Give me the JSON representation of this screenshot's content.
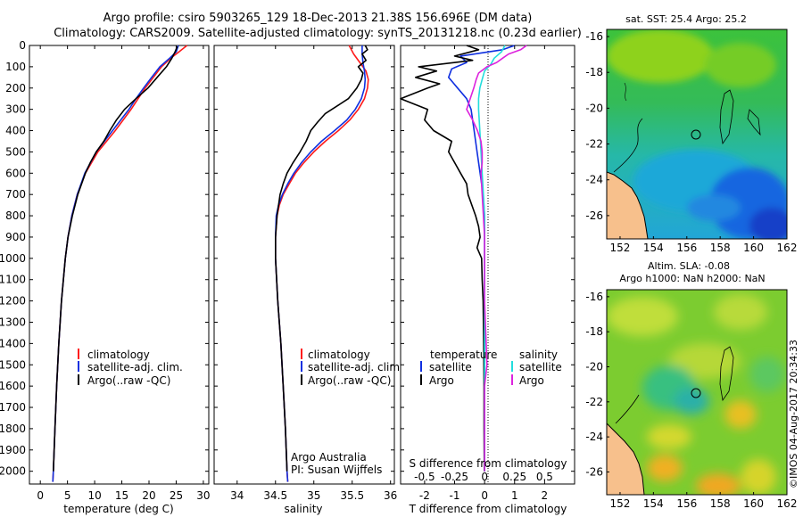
{
  "header": {
    "title_line1": "Argo profile: csiro 5903265_129 18-Dec-2013 21.38S 156.696E (DM data)",
    "title_line2": "Climatology: CARS2009. Satellite-adjusted climatology: synTS_20131218.nc (0.23d earlier)"
  },
  "colors": {
    "climatology": "#ff1a1a",
    "satellite": "#1030e0",
    "argo": "#000000",
    "sal_satellite": "#22dddd",
    "sal_argo": "#dd22dd",
    "land": "#f7c08c"
  },
  "chart_data": [
    {
      "id": "temperature",
      "type": "line",
      "xlabel": "temperature (deg C)",
      "ylabel": "",
      "xlim": [
        -2,
        31
      ],
      "ylim": [
        2060,
        0
      ],
      "x_ticks": [
        "0",
        "5",
        "10",
        "15",
        "20",
        "25",
        "30"
      ],
      "x_tick_values": [
        0,
        5,
        10,
        15,
        20,
        25,
        30
      ],
      "y_tick_values": [
        0,
        100,
        200,
        300,
        400,
        500,
        600,
        700,
        800,
        900,
        1000,
        1100,
        1200,
        1300,
        1400,
        1500,
        1600,
        1700,
        1800,
        1900,
        2000
      ],
      "y_ticks": [
        "0",
        "100",
        "200",
        "300",
        "400",
        "500",
        "600",
        "700",
        "800",
        "900",
        "1000",
        "1100",
        "1200",
        "1300",
        "1400",
        "1500",
        "1600",
        "1700",
        "1800",
        "1900",
        "2000"
      ],
      "legend": [
        "climatology",
        "satellite-adj. clim.",
        "Argo(..raw -QC)"
      ],
      "series": [
        {
          "name": "climatology",
          "depth": [
            0,
            30,
            60,
            100,
            150,
            200,
            250,
            300,
            400,
            500,
            600,
            700,
            800,
            900,
            1000,
            1200,
            1400,
            1600,
            1800,
            2000,
            2050
          ],
          "values": [
            27.0,
            25.5,
            24.0,
            22.3,
            20.8,
            19.3,
            18.0,
            16.7,
            13.8,
            10.6,
            8.3,
            6.8,
            5.8,
            5.1,
            4.6,
            3.9,
            3.4,
            3.0,
            2.7,
            2.4,
            2.3
          ]
        },
        {
          "name": "satellite-adj. clim.",
          "depth": [
            0,
            30,
            60,
            100,
            150,
            200,
            250,
            300,
            400,
            500,
            600,
            700,
            800,
            900,
            1000,
            1200,
            1400,
            1600,
            1800,
            2000,
            2050
          ],
          "values": [
            25.4,
            25.0,
            23.8,
            22.0,
            20.5,
            19.0,
            17.6,
            16.3,
            13.3,
            10.3,
            8.2,
            6.8,
            5.8,
            5.1,
            4.6,
            3.9,
            3.4,
            3.0,
            2.7,
            2.4,
            2.3
          ]
        },
        {
          "name": "Argo(..raw -QC)",
          "depth": [
            5,
            30,
            60,
            100,
            150,
            200,
            250,
            300,
            350,
            400,
            450,
            500,
            550,
            600,
            700,
            800,
            900,
            1000,
            1200,
            1400,
            1600,
            1800,
            2000
          ],
          "values": [
            25.2,
            24.8,
            24.2,
            23.2,
            21.5,
            19.8,
            17.6,
            15.5,
            14.0,
            12.8,
            11.7,
            10.3,
            9.2,
            8.3,
            6.9,
            5.9,
            5.1,
            4.6,
            3.9,
            3.4,
            3.0,
            2.7,
            2.4
          ]
        }
      ]
    },
    {
      "id": "salinity",
      "type": "line",
      "xlabel": "salinity",
      "xlim": [
        33.7,
        36.05
      ],
      "ylim": [
        2060,
        0
      ],
      "x_ticks": [
        "34",
        "34.5",
        "35",
        "35.5",
        "36"
      ],
      "x_tick_values": [
        34,
        34.5,
        35,
        35.5,
        36
      ],
      "legend": [
        "climatology",
        "satellite-adj. clim.",
        "Argo(..raw -QC)"
      ],
      "annotation": [
        "Argo Australia",
        "PI: Susan Wijffels"
      ],
      "series": [
        {
          "name": "climatology",
          "depth": [
            0,
            40,
            80,
            120,
            160,
            200,
            250,
            300,
            350,
            400,
            450,
            500,
            550,
            600,
            650,
            700,
            750,
            800,
            900,
            1000,
            1200,
            1400,
            1600,
            1800,
            2000,
            2050
          ],
          "values": [
            35.46,
            35.52,
            35.6,
            35.68,
            35.71,
            35.7,
            35.66,
            35.58,
            35.47,
            35.32,
            35.15,
            35.0,
            34.87,
            34.76,
            34.68,
            34.6,
            34.55,
            34.52,
            34.5,
            34.5,
            34.53,
            34.57,
            34.6,
            34.63,
            34.65,
            34.66
          ]
        },
        {
          "name": "satellite-adj. clim.",
          "depth": [
            0,
            40,
            80,
            120,
            160,
            200,
            250,
            300,
            350,
            400,
            450,
            500,
            550,
            600,
            650,
            700,
            750,
            800,
            900,
            1000,
            1200,
            1400,
            1600,
            1800,
            2000,
            2050
          ],
          "values": [
            35.63,
            35.63,
            35.64,
            35.66,
            35.67,
            35.66,
            35.62,
            35.54,
            35.43,
            35.27,
            35.1,
            34.96,
            34.84,
            34.74,
            34.66,
            34.59,
            34.54,
            34.51,
            34.5,
            34.5,
            34.53,
            34.57,
            34.6,
            34.63,
            34.65,
            34.66
          ]
        },
        {
          "name": "Argo(..raw -QC)",
          "depth": [
            0,
            20,
            40,
            70,
            100,
            130,
            160,
            200,
            250,
            280,
            320,
            360,
            400,
            450,
            500,
            550,
            600,
            650,
            700,
            800,
            900,
            1000,
            1200,
            1400,
            1600,
            1800,
            2000
          ],
          "values": [
            35.67,
            35.7,
            35.63,
            35.68,
            35.58,
            35.64,
            35.62,
            35.56,
            35.45,
            35.32,
            35.15,
            35.05,
            34.96,
            34.9,
            34.82,
            34.73,
            34.65,
            34.6,
            34.56,
            34.52,
            34.5,
            34.5,
            34.53,
            34.57,
            34.6,
            34.63,
            34.65
          ]
        }
      ]
    },
    {
      "id": "differences",
      "type": "line",
      "xlabel": "T difference from climatology",
      "xlabel_top": "S difference from climatology",
      "xlim": [
        -2.8,
        3.0
      ],
      "ylim": [
        2060,
        0
      ],
      "x_ticks": [
        "-2",
        "-1",
        "0",
        "1",
        "2"
      ],
      "x_tick_values": [
        -2,
        -1,
        0,
        1,
        2
      ],
      "s_ticks": [
        "-0.5",
        "-0.25",
        "0",
        "0.25",
        "0.5"
      ],
      "s_tick_values": [
        -0.5,
        -0.25,
        0,
        0.25,
        0.5
      ],
      "s_scale_factor": 4,
      "legend_left_title": "temperature",
      "legend_right_title": "salinity",
      "legend_left": [
        "satellite",
        "Argo"
      ],
      "legend_right": [
        "satellite",
        "Argo"
      ],
      "series": [
        {
          "name": "temperature satellite",
          "depth": [
            0,
            20,
            50,
            80,
            110,
            150,
            200,
            250,
            300,
            400,
            500,
            600,
            700,
            800,
            1000,
            1200,
            1400,
            1600,
            1800,
            2000
          ],
          "values": [
            1.0,
            0.6,
            -0.8,
            -0.6,
            -1.1,
            -1.2,
            -0.9,
            -0.6,
            -0.45,
            -0.35,
            -0.25,
            -0.15,
            -0.05,
            0.0,
            0.0,
            0.0,
            0.0,
            0.0,
            0.0,
            0.0
          ]
        },
        {
          "name": "temperature Argo",
          "depth": [
            0,
            20,
            50,
            70,
            100,
            120,
            150,
            180,
            200,
            250,
            300,
            350,
            400,
            450,
            500,
            600,
            650,
            700,
            800,
            850,
            900,
            950,
            1000,
            1100,
            1200,
            1400,
            1600,
            1800,
            2000
          ],
          "values": [
            -0.6,
            -0.2,
            -1.0,
            -0.4,
            -2.2,
            -1.6,
            -2.3,
            -1.5,
            -1.9,
            -2.8,
            -1.9,
            -2.0,
            -1.7,
            -1.1,
            -1.2,
            -0.8,
            -0.6,
            -0.55,
            -0.3,
            -0.2,
            -0.15,
            -0.25,
            -0.1,
            -0.08,
            -0.05,
            -0.03,
            -0.02,
            -0.02,
            -0.01
          ]
        },
        {
          "name": "salinity satellite",
          "depth": [
            0,
            30,
            60,
            90,
            120,
            160,
            200,
            250,
            300,
            400,
            500,
            600,
            700,
            800,
            1000,
            1200,
            1400,
            1600,
            1800,
            2000
          ],
          "values": [
            0.17,
            0.14,
            0.08,
            0.05,
            0.0,
            -0.02,
            -0.04,
            -0.05,
            -0.05,
            -0.04,
            -0.03,
            -0.02,
            -0.01,
            0.0,
            0.0,
            0.0,
            0.0,
            0.0,
            0.0,
            0.0
          ]
        },
        {
          "name": "salinity Argo",
          "depth": [
            0,
            20,
            40,
            60,
            80,
            100,
            130,
            160,
            200,
            250,
            300,
            350,
            400,
            450,
            500,
            550,
            600,
            700,
            800,
            900,
            1000,
            1200,
            1500,
            1600,
            1800,
            2000
          ],
          "values": [
            0.35,
            0.3,
            0.2,
            0.15,
            0.1,
            0.02,
            -0.05,
            -0.07,
            -0.09,
            -0.12,
            -0.15,
            -0.1,
            -0.06,
            -0.03,
            -0.02,
            -0.02,
            -0.03,
            -0.02,
            -0.01,
            0.0,
            0.0,
            0.0,
            0.02,
            0.0,
            0.0,
            0.0
          ]
        }
      ]
    },
    {
      "id": "sst_map",
      "type": "heatmap",
      "title": "sat. SST: 25.4  Argo: 25.2",
      "xlim": [
        151.2,
        162.0
      ],
      "ylim": [
        -27.3,
        -15.6
      ],
      "x_ticks": [
        "152",
        "154",
        "156",
        "158",
        "160",
        "162"
      ],
      "x_tick_values": [
        152,
        154,
        156,
        158,
        160,
        162
      ],
      "y_ticks": [
        "-16",
        "-18",
        "-20",
        "-22",
        "-24",
        "-26"
      ],
      "y_tick_values": [
        -16,
        -18,
        -20,
        -22,
        -24,
        -26
      ],
      "marker": {
        "lon": 156.696,
        "lat": -21.38
      }
    },
    {
      "id": "sla_map",
      "type": "heatmap",
      "title_line1": "Altim. SLA: -0.08",
      "title_line2": "Argo h1000: NaN h2000: NaN",
      "xlim": [
        151.2,
        162.0
      ],
      "ylim": [
        -27.3,
        -15.6
      ],
      "x_ticks": [
        "152",
        "154",
        "156",
        "158",
        "160",
        "162"
      ],
      "x_tick_values": [
        152,
        154,
        156,
        158,
        160,
        162
      ],
      "y_ticks": [
        "-16",
        "-18",
        "-20",
        "-22",
        "-24",
        "-26"
      ],
      "y_tick_values": [
        -16,
        -18,
        -20,
        -22,
        -24,
        -26
      ],
      "marker": {
        "lon": 156.696,
        "lat": -21.38
      }
    }
  ],
  "footer": {
    "credit": "©IMOS 04-Aug-2017 20:34:33"
  }
}
